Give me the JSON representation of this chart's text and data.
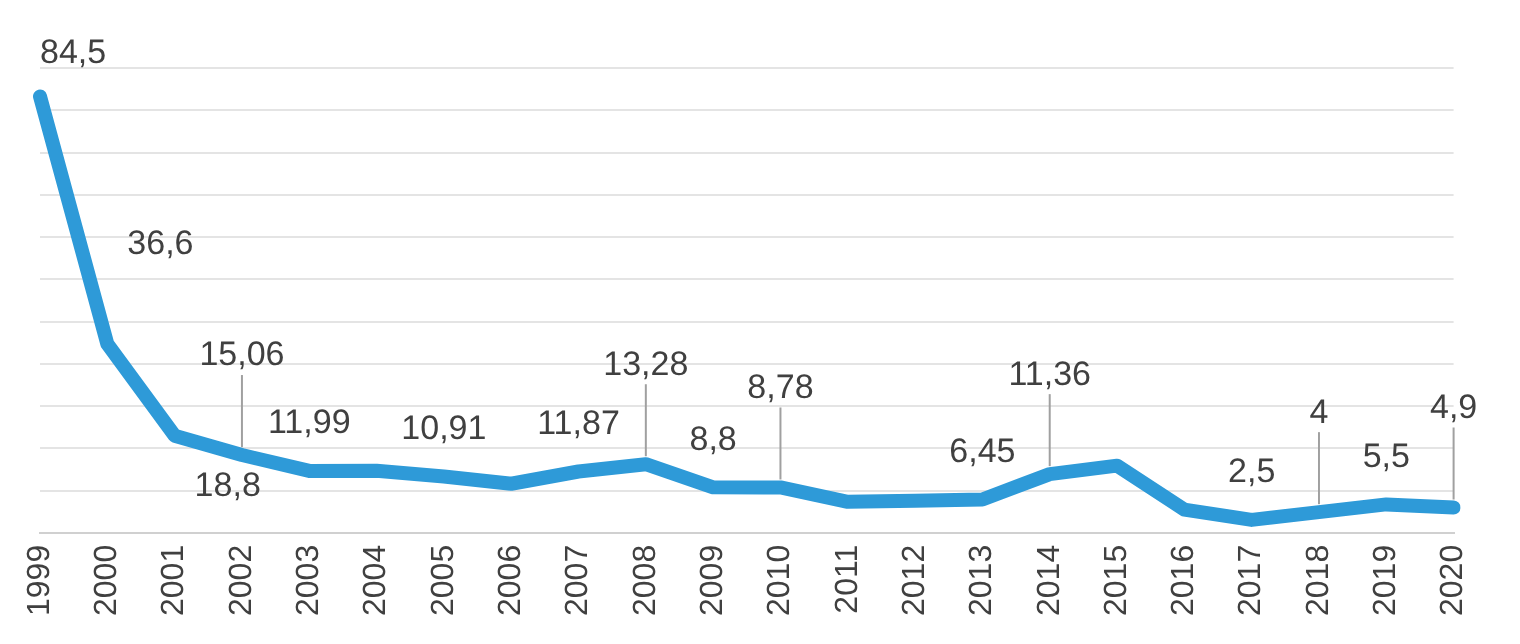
{
  "chart_data": {
    "type": "line",
    "categories": [
      "1999",
      "2000",
      "2001",
      "2002",
      "2003",
      "2004",
      "2005",
      "2006",
      "2007",
      "2008",
      "2009",
      "2010",
      "2011",
      "2012",
      "2013",
      "2014",
      "2015",
      "2016",
      "2017",
      "2018",
      "2019",
      "2020"
    ],
    "values": [
      84.5,
      36.6,
      18.8,
      15.06,
      11.99,
      12,
      10.91,
      9.5,
      11.87,
      13.28,
      8.8,
      8.78,
      6,
      6.2,
      6.45,
      11.36,
      13,
      4.5,
      2.5,
      4,
      5.5,
      4.9
    ],
    "value_labels": [
      "84,5",
      "36,6",
      "18,8",
      "15,06",
      "11,99",
      null,
      "10,91",
      null,
      "11,87",
      "13,28",
      "8,8",
      "8,78",
      null,
      null,
      "6,45",
      "11,36",
      null,
      null,
      "2,5",
      "4",
      "5,5",
      "4,9"
    ],
    "color": "#2e9ad8",
    "grid": "y",
    "marker": "none",
    "line_style": "solid"
  }
}
